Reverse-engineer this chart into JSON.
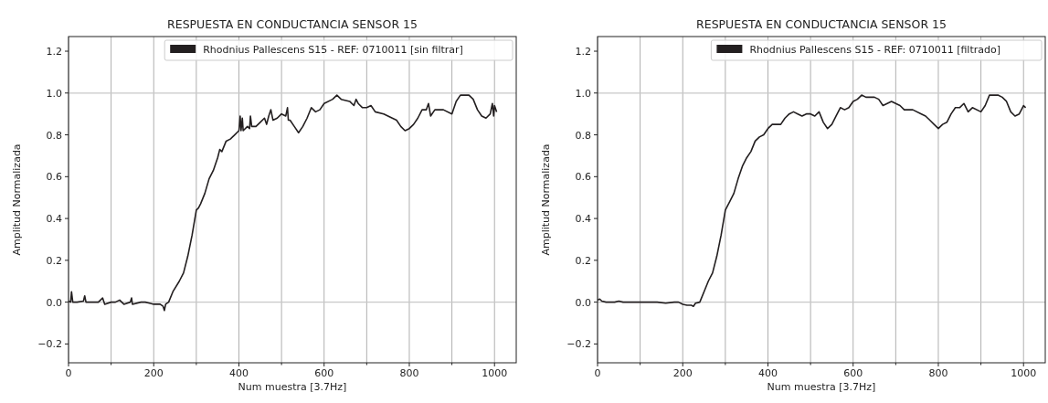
{
  "chart_data": [
    {
      "type": "line",
      "title": "RESPUESTA EN CONDUCTANCIA SENSOR 15",
      "xlabel": "Num muestra [3.7Hz]",
      "ylabel": "Amplitud Normalizada",
      "legend": "top right",
      "grid": "x",
      "xlim": [
        0,
        1051
      ],
      "ylim": [
        -0.29,
        1.27
      ],
      "xticks": [
        0,
        {
          "value": 100,
          "label": null
        },
        200,
        {
          "value": 300,
          "label": null
        },
        400,
        {
          "value": 500,
          "label": null
        },
        600,
        {
          "value": 700,
          "label": null
        },
        800,
        {
          "value": 900,
          "label": null
        },
        1000
      ],
      "yticks": [
        {
          "value": -0.2,
          "label": "−0.2"
        },
        {
          "value": 0,
          "label": "0.0"
        },
        0.2,
        0.4,
        0.6,
        0.8,
        {
          "value": 1,
          "label": "1.0"
        },
        1.2
      ],
      "ref_lines": [
        {
          "axis": "y",
          "value": 0,
          "color": "#c8c8c8"
        },
        {
          "axis": "y",
          "value": 1,
          "color": "#c8c8c8"
        }
      ],
      "series": [
        {
          "name": "Rhodnius Pallescens S15 - REF: 0710011 [sin filtrar]",
          "color": "#231f20",
          "x": [
            0,
            5,
            7,
            10,
            20,
            35,
            38,
            41,
            50,
            70,
            80,
            85,
            100,
            110,
            120,
            130,
            145,
            148,
            150,
            170,
            180,
            190,
            200,
            215,
            222,
            225,
            228,
            235,
            245,
            260,
            270,
            280,
            290,
            300,
            305,
            310,
            320,
            330,
            340,
            350,
            355,
            360,
            370,
            380,
            390,
            400,
            403,
            405,
            408,
            410,
            420,
            425,
            427,
            430,
            440,
            450,
            460,
            465,
            470,
            475,
            480,
            490,
            500,
            510,
            514,
            516,
            520,
            530,
            540,
            550,
            560,
            570,
            580,
            590,
            600,
            620,
            630,
            640,
            660,
            670,
            675,
            680,
            690,
            700,
            710,
            720,
            740,
            760,
            770,
            780,
            790,
            800,
            810,
            820,
            830,
            840,
            845,
            850,
            860,
            880,
            900,
            910,
            920,
            940,
            950,
            960,
            970,
            980,
            990,
            995,
            998,
            1000,
            1005
          ],
          "values": [
            0.005,
            0.0,
            0.05,
            0.0,
            0.0,
            0.005,
            0.03,
            0.0,
            0.0,
            0.0,
            0.02,
            -0.01,
            0.0,
            0.0,
            0.01,
            -0.01,
            0.0,
            0.02,
            -0.01,
            0.0,
            0.0,
            -0.005,
            -0.01,
            -0.01,
            -0.02,
            -0.04,
            -0.01,
            0.0,
            0.05,
            0.1,
            0.14,
            0.22,
            0.32,
            0.44,
            0.45,
            0.47,
            0.52,
            0.59,
            0.63,
            0.69,
            0.73,
            0.72,
            0.77,
            0.78,
            0.8,
            0.82,
            0.89,
            0.82,
            0.88,
            0.82,
            0.84,
            0.83,
            0.89,
            0.84,
            0.84,
            0.86,
            0.88,
            0.85,
            0.89,
            0.92,
            0.87,
            0.88,
            0.9,
            0.89,
            0.93,
            0.87,
            0.87,
            0.84,
            0.81,
            0.84,
            0.88,
            0.93,
            0.91,
            0.92,
            0.95,
            0.97,
            0.99,
            0.97,
            0.96,
            0.94,
            0.97,
            0.95,
            0.93,
            0.93,
            0.94,
            0.91,
            0.9,
            0.88,
            0.87,
            0.84,
            0.82,
            0.83,
            0.85,
            0.88,
            0.92,
            0.92,
            0.95,
            0.89,
            0.92,
            0.92,
            0.9,
            0.96,
            0.99,
            0.99,
            0.97,
            0.92,
            0.89,
            0.88,
            0.9,
            0.95,
            0.89,
            0.94,
            0.91
          ]
        }
      ]
    },
    {
      "type": "line",
      "title": "RESPUESTA EN CONDUCTANCIA SENSOR 15",
      "xlabel": "Num muestra [3.7Hz]",
      "ylabel": "Amplitud Normalizada",
      "legend": "top right",
      "grid": "x",
      "xlim": [
        0,
        1051
      ],
      "ylim": [
        -0.29,
        1.27
      ],
      "xticks": [
        0,
        {
          "value": 100,
          "label": null
        },
        200,
        {
          "value": 300,
          "label": null
        },
        400,
        {
          "value": 500,
          "label": null
        },
        600,
        {
          "value": 700,
          "label": null
        },
        800,
        {
          "value": 900,
          "label": null
        },
        1000
      ],
      "yticks": [
        {
          "value": -0.2,
          "label": "−0.2"
        },
        {
          "value": 0,
          "label": "0.0"
        },
        0.2,
        0.4,
        0.6,
        0.8,
        {
          "value": 1,
          "label": "1.0"
        },
        1.2
      ],
      "ref_lines": [
        {
          "axis": "y",
          "value": 0,
          "color": "#c8c8c8"
        },
        {
          "axis": "y",
          "value": 1,
          "color": "#c8c8c8"
        }
      ],
      "series": [
        {
          "name": "Rhodnius Pallescens S15 - REF: 0710011 [filtrado]",
          "color": "#231f20",
          "x": [
            0,
            5,
            10,
            20,
            40,
            50,
            60,
            80,
            100,
            120,
            140,
            160,
            180,
            190,
            200,
            210,
            220,
            225,
            230,
            240,
            250,
            260,
            270,
            280,
            290,
            300,
            310,
            320,
            330,
            340,
            350,
            360,
            370,
            380,
            390,
            400,
            410,
            420,
            430,
            440,
            450,
            460,
            470,
            480,
            490,
            500,
            510,
            520,
            530,
            540,
            550,
            560,
            570,
            580,
            590,
            600,
            610,
            620,
            630,
            640,
            650,
            660,
            670,
            680,
            690,
            700,
            710,
            720,
            740,
            760,
            770,
            780,
            790,
            800,
            810,
            820,
            830,
            840,
            850,
            860,
            870,
            880,
            900,
            910,
            920,
            940,
            950,
            960,
            970,
            980,
            990,
            1000,
            1005
          ],
          "values": [
            0.01,
            0.015,
            0.005,
            0.0,
            0.0,
            0.005,
            0.0,
            0.0,
            0.0,
            0.0,
            0.0,
            -0.005,
            0.0,
            0.0,
            -0.01,
            -0.015,
            -0.015,
            -0.02,
            -0.005,
            0.0,
            0.05,
            0.1,
            0.14,
            0.22,
            0.32,
            0.44,
            0.48,
            0.52,
            0.59,
            0.65,
            0.69,
            0.72,
            0.77,
            0.79,
            0.8,
            0.83,
            0.85,
            0.85,
            0.85,
            0.88,
            0.9,
            0.91,
            0.9,
            0.89,
            0.9,
            0.9,
            0.89,
            0.91,
            0.86,
            0.83,
            0.85,
            0.89,
            0.93,
            0.92,
            0.93,
            0.96,
            0.97,
            0.99,
            0.98,
            0.98,
            0.98,
            0.97,
            0.94,
            0.95,
            0.96,
            0.95,
            0.94,
            0.92,
            0.92,
            0.9,
            0.89,
            0.87,
            0.85,
            0.83,
            0.85,
            0.86,
            0.9,
            0.93,
            0.93,
            0.95,
            0.91,
            0.93,
            0.91,
            0.94,
            0.99,
            0.99,
            0.98,
            0.96,
            0.91,
            0.89,
            0.9,
            0.94,
            0.93
          ]
        }
      ]
    }
  ]
}
